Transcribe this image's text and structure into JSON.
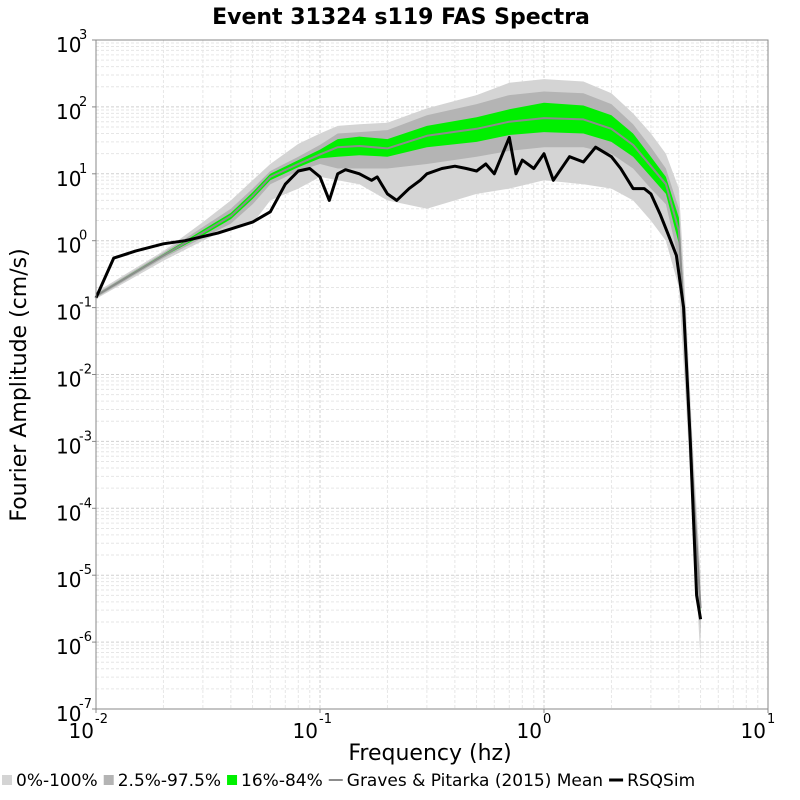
{
  "chart_data": {
    "type": "area",
    "title": "Event 31324 s119 FAS Spectra",
    "xlabel": "Frequency (hz)",
    "ylabel": "Fourier Amplitude (cm/s)",
    "xscale": "log",
    "yscale": "log",
    "xlim": [
      0.01,
      10
    ],
    "ylim": [
      1e-07,
      1000
    ],
    "grid": true,
    "legend_position": "bottom",
    "x_ticks": [
      {
        "base": "10",
        "exp": "-2"
      },
      {
        "base": "10",
        "exp": "-1"
      },
      {
        "base": "10",
        "exp": "0"
      },
      {
        "base": "10",
        "exp": "1"
      }
    ],
    "y_ticks": [
      {
        "base": "10",
        "exp": "-7"
      },
      {
        "base": "10",
        "exp": "-6"
      },
      {
        "base": "10",
        "exp": "-5"
      },
      {
        "base": "10",
        "exp": "-4"
      },
      {
        "base": "10",
        "exp": "-3"
      },
      {
        "base": "10",
        "exp": "-2"
      },
      {
        "base": "10",
        "exp": "-1"
      },
      {
        "base": "10",
        "exp": "0"
      },
      {
        "base": "10",
        "exp": "1"
      },
      {
        "base": "10",
        "exp": "2"
      },
      {
        "base": "10",
        "exp": "3"
      }
    ],
    "x": [
      0.01,
      0.02,
      0.03,
      0.04,
      0.05,
      0.06,
      0.08,
      0.1,
      0.12,
      0.15,
      0.2,
      0.3,
      0.5,
      0.7,
      1.0,
      1.5,
      2.0,
      2.5,
      3.0,
      3.5,
      4.0,
      4.3,
      4.6,
      5.0
    ],
    "bands": [
      {
        "name": "0%-100%",
        "color": "#d4d4d4",
        "lower": [
          0.135,
          0.5,
          1.0,
          1.6,
          1.8,
          4.0,
          6.0,
          9.0,
          8.0,
          7.0,
          4.0,
          3.0,
          5.0,
          6.0,
          8.0,
          7.0,
          6.0,
          4.0,
          2.0,
          1.0,
          0.2,
          0.004,
          8e-05,
          5e-07
        ],
        "upper": [
          0.17,
          0.7,
          1.9,
          4.0,
          8.0,
          14.0,
          28.0,
          40.0,
          52.0,
          55.0,
          58.0,
          95.0,
          150.0,
          230.0,
          260.0,
          240.0,
          160.0,
          80.0,
          40.0,
          20.0,
          6.0,
          0.1,
          0.001,
          1e-05
        ]
      },
      {
        "name": "2.5%-97.5%",
        "color": "#b4b4b4",
        "lower": [
          0.14,
          0.55,
          1.1,
          1.8,
          3.5,
          7.0,
          11.0,
          14.0,
          12.0,
          12.0,
          12.0,
          14.0,
          18.0,
          22.0,
          25.0,
          25.0,
          20.0,
          12.0,
          6.0,
          3.5,
          0.5,
          0.01,
          0.0002,
          1.2e-06
        ],
        "upper": [
          0.16,
          0.66,
          1.6,
          3.0,
          6.0,
          11.0,
          18.0,
          27.0,
          40.0,
          42.0,
          45.0,
          75.0,
          110.0,
          150.0,
          170.0,
          160.0,
          110.0,
          55.0,
          25.0,
          12.0,
          3.0,
          0.05,
          0.0005,
          5e-06
        ]
      },
      {
        "name": "16%-84%",
        "color": "#00f000",
        "lower": [
          0.145,
          0.58,
          1.2,
          2.1,
          4.2,
          8.0,
          12.5,
          17.0,
          18.0,
          19.0,
          18.0,
          25.0,
          30.0,
          38.0,
          42.0,
          40.0,
          30.0,
          18.0,
          9.0,
          5.0,
          0.9,
          0.015,
          0.00025,
          2.5e-06
        ],
        "upper": [
          0.155,
          0.63,
          1.45,
          2.6,
          5.3,
          10.0,
          16.0,
          23.0,
          33.0,
          36.0,
          33.0,
          52.0,
          70.0,
          92.0,
          115.0,
          105.0,
          75.0,
          40.0,
          18.0,
          9.0,
          2.2,
          0.035,
          0.0004,
          4e-06
        ]
      }
    ],
    "series": [
      {
        "name": "Graves & Pitarka (2015) Mean",
        "color": "#8c8c8c",
        "x": [
          0.01,
          0.02,
          0.03,
          0.04,
          0.05,
          0.06,
          0.08,
          0.1,
          0.12,
          0.15,
          0.2,
          0.3,
          0.5,
          0.7,
          1.0,
          1.5,
          2.0,
          2.5,
          3.0,
          3.5,
          4.0,
          4.3,
          4.6,
          5.0
        ],
        "values": [
          0.15,
          0.6,
          1.32,
          2.35,
          4.7,
          9.0,
          14.0,
          19.5,
          25.0,
          26.0,
          24.0,
          37.0,
          47.0,
          60.0,
          68.0,
          65.0,
          47.0,
          27.0,
          13.0,
          7.0,
          1.4,
          0.023,
          0.00032,
          3.2e-06
        ]
      },
      {
        "name": "RSQSim",
        "color": "#000000",
        "x": [
          0.01,
          0.012,
          0.015,
          0.02,
          0.025,
          0.03,
          0.035,
          0.04,
          0.05,
          0.06,
          0.07,
          0.08,
          0.09,
          0.1,
          0.11,
          0.12,
          0.13,
          0.15,
          0.17,
          0.18,
          0.2,
          0.22,
          0.25,
          0.28,
          0.3,
          0.35,
          0.4,
          0.45,
          0.5,
          0.55,
          0.6,
          0.7,
          0.75,
          0.8,
          0.9,
          1.0,
          1.1,
          1.3,
          1.5,
          1.7,
          2.0,
          2.2,
          2.5,
          2.8,
          3.0,
          3.3,
          3.6,
          3.9,
          4.2,
          4.5,
          4.8,
          5.0
        ],
        "values": [
          0.14,
          0.55,
          0.7,
          0.9,
          1.0,
          1.15,
          1.3,
          1.5,
          1.9,
          2.7,
          7.0,
          11.0,
          12.0,
          9.0,
          4.0,
          10.0,
          11.5,
          10.0,
          8.0,
          9.0,
          5.0,
          4.0,
          6.0,
          8.0,
          10.0,
          12.0,
          13.0,
          12.0,
          11.0,
          14.0,
          10.0,
          35.0,
          10.0,
          16.0,
          12.0,
          20.0,
          8.0,
          18.0,
          15.0,
          25.0,
          18.0,
          12.0,
          6.0,
          6.0,
          5.0,
          2.5,
          1.2,
          0.6,
          0.1,
          0.001,
          5e-06,
          2.2e-06
        ]
      }
    ],
    "legend": [
      {
        "label": "0%-100%",
        "kind": "box",
        "color": "#d4d4d4"
      },
      {
        "label": "2.5%-97.5%",
        "kind": "box",
        "color": "#b4b4b4"
      },
      {
        "label": "16%-84%",
        "kind": "box",
        "color": "#00f000"
      },
      {
        "label": "Graves & Pitarka (2015) Mean",
        "kind": "line",
        "color": "#8c8c8c"
      },
      {
        "label": "RSQSim",
        "kind": "line",
        "color": "#000000"
      }
    ]
  }
}
